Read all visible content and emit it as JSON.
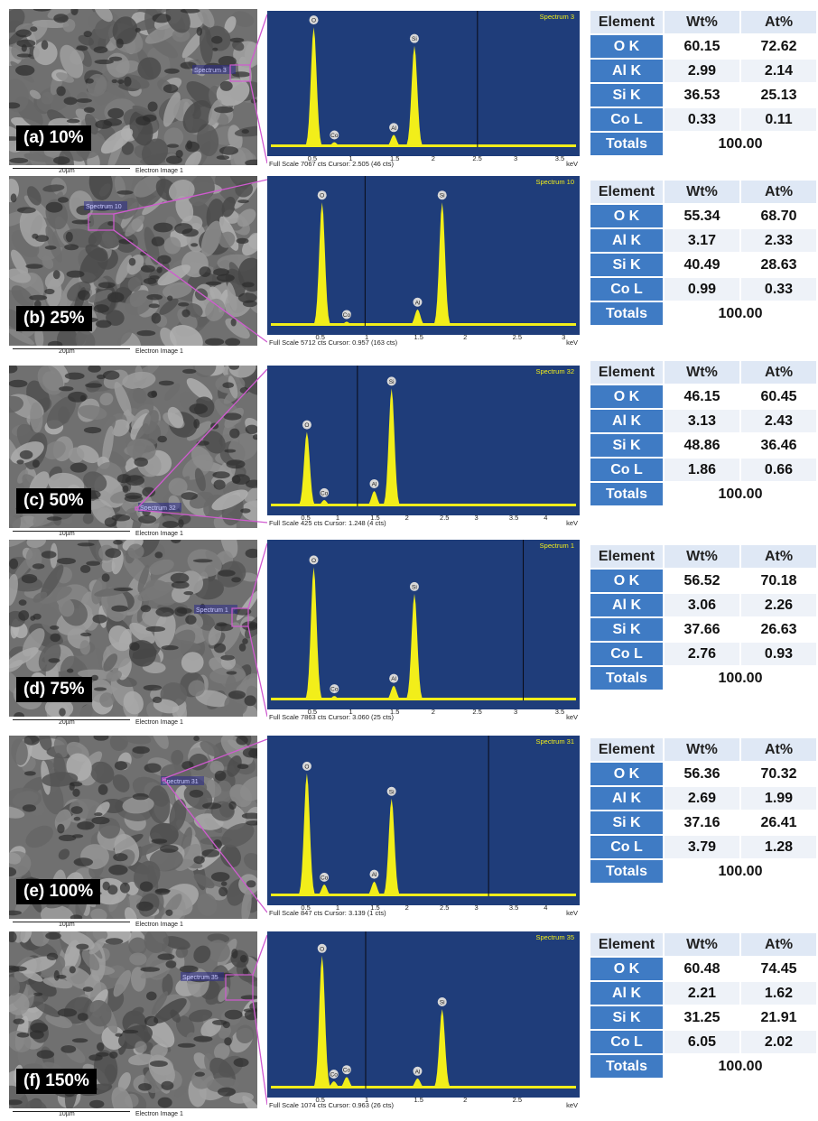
{
  "figure": {
    "panels": [
      {
        "id": "a",
        "label": "(a) 10%",
        "scale": "20µm",
        "image_label": "Electron Image 1",
        "spectrum_tag": "Spectrum 3",
        "spectrum_title": "Spectrum 3",
        "footer": "Full Scale 7067 cts Cursor: 2.505  (46 cts)",
        "unit": "keV",
        "xticks": [
          "0.5",
          "1",
          "1.5",
          "2",
          "2.5",
          "3",
          "3.5"
        ],
        "table": {
          "header": [
            "Element",
            "Wt%",
            "At%"
          ],
          "rows": [
            [
              "O K",
              "60.15",
              "72.62"
            ],
            [
              "Al K",
              "2.99",
              "2.14"
            ],
            [
              "Si K",
              "36.53",
              "25.13"
            ],
            [
              "Co L",
              "0.33",
              "0.11"
            ]
          ],
          "totals_label": "Totals",
          "totals_value": "100.00"
        }
      },
      {
        "id": "b",
        "label": "(b) 25%",
        "scale": "20µm",
        "image_label": "Electron Image 1",
        "spectrum_tag": "Spectrum 10",
        "spectrum_title": "Spectrum 10",
        "footer": "Full Scale 5712 cts Cursor: 0.957  (163 cts)",
        "unit": "keV",
        "xticks": [
          "0.5",
          "1",
          "1.5",
          "2",
          "2.5",
          "3"
        ],
        "table": {
          "header": [
            "Element",
            "Wt%",
            "At%"
          ],
          "rows": [
            [
              "O K",
              "55.34",
              "68.70"
            ],
            [
              "Al K",
              "3.17",
              "2.33"
            ],
            [
              "Si K",
              "40.49",
              "28.63"
            ],
            [
              "Co L",
              "0.99",
              "0.33"
            ]
          ],
          "totals_label": "Totals",
          "totals_value": "100.00"
        }
      },
      {
        "id": "c",
        "label": "(c) 50%",
        "scale": "10µm",
        "image_label": "Electron Image 1",
        "spectrum_tag": "Spectrum 32",
        "spectrum_title": "Spectrum 32",
        "footer": "Full Scale 425 cts Cursor: 1.248  (4 cts)",
        "unit": "keV",
        "xticks": [
          "0.5",
          "1",
          "1.5",
          "2",
          "2.5",
          "3",
          "3.5",
          "4"
        ],
        "table": {
          "header": [
            "Element",
            "Wt%",
            "At%"
          ],
          "rows": [
            [
              "O K",
              "46.15",
              "60.45"
            ],
            [
              "Al K",
              "3.13",
              "2.43"
            ],
            [
              "Si K",
              "48.86",
              "36.46"
            ],
            [
              "Co L",
              "1.86",
              "0.66"
            ]
          ],
          "totals_label": "Totals",
          "totals_value": "100.00"
        }
      },
      {
        "id": "d",
        "label": "(d) 75%",
        "scale": "20µm",
        "image_label": "Electron Image 1",
        "spectrum_tag": "Spectrum 1",
        "spectrum_title": "Spectrum 1",
        "footer": "Full Scale 7863 cts Cursor: 3.060  (25 cts)",
        "unit": "keV",
        "xticks": [
          "0.5",
          "1",
          "1.5",
          "2",
          "2.5",
          "3",
          "3.5"
        ],
        "table": {
          "header": [
            "Element",
            "Wt%",
            "At%"
          ],
          "rows": [
            [
              "O K",
              "56.52",
              "70.18"
            ],
            [
              "Al K",
              "3.06",
              "2.26"
            ],
            [
              "Si K",
              "37.66",
              "26.63"
            ],
            [
              "Co L",
              "2.76",
              "0.93"
            ]
          ],
          "totals_label": "Totals",
          "totals_value": "100.00"
        }
      },
      {
        "id": "e",
        "label": "(e) 100%",
        "scale": "10µm",
        "image_label": "Electron Image 1",
        "spectrum_tag": "Spectrum 31",
        "spectrum_title": "Spectrum 31",
        "footer": "Full Scale 847 cts Cursor: 3.139  (1 cts)",
        "unit": "keV",
        "xticks": [
          "0.5",
          "1",
          "1.5",
          "2",
          "2.5",
          "3",
          "3.5",
          "4"
        ],
        "table": {
          "header": [
            "Element",
            "Wt%",
            "At%"
          ],
          "rows": [
            [
              "O K",
              "56.36",
              "70.32"
            ],
            [
              "Al K",
              "2.69",
              "1.99"
            ],
            [
              "Si K",
              "37.16",
              "26.41"
            ],
            [
              "Co L",
              "3.79",
              "1.28"
            ]
          ],
          "totals_label": "Totals",
          "totals_value": "100.00"
        }
      },
      {
        "id": "f",
        "label": "(f) 150%",
        "scale": "10µm",
        "image_label": "Electron Image 1",
        "spectrum_tag": "Spectrum 35",
        "spectrum_title": "Spectrum 35",
        "footer": "Full Scale 1074 cts Cursor: 0.963  (26 cts)",
        "unit": "keV",
        "xticks": [
          "0.5",
          "1",
          "1.5",
          "2",
          "2.5"
        ],
        "table": {
          "header": [
            "Element",
            "Wt%",
            "At%"
          ],
          "rows": [
            [
              "O K",
              "60.48",
              "74.45"
            ],
            [
              "Al K",
              "2.21",
              "1.62"
            ],
            [
              "Si K",
              "31.25",
              "21.91"
            ],
            [
              "Co L",
              "6.05",
              "2.02"
            ]
          ],
          "totals_label": "Totals",
          "totals_value": "100.00"
        }
      }
    ],
    "peak_labels": [
      "O",
      "Co",
      "Al",
      "Si"
    ],
    "colors": {
      "spectrum_bg": "#1f3d7a",
      "peak": "#f2ee1a",
      "spectrum_title": "#f2ee1a",
      "callout": "#d05ad0",
      "table_element": "#3f7bc4",
      "table_header": "#dfe8f5"
    }
  }
}
